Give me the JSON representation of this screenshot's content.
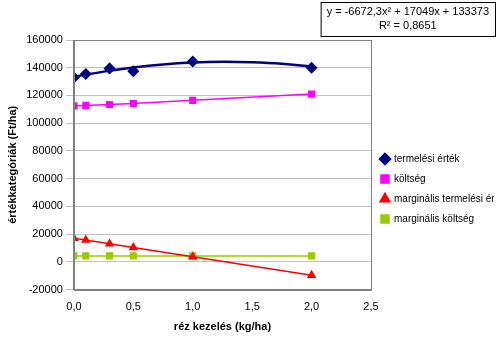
{
  "chart_data": {
    "type": "scatter",
    "x_label": "réz kezelés (kg/ha)",
    "y_label": "értékkategóriák (Ft/ha)",
    "x": [
      0,
      0.1,
      0.3,
      0.5,
      1.0,
      2.0
    ],
    "series": [
      {
        "name": "termelési érték",
        "color": "#000080",
        "marker": "diamond",
        "line_style": "none",
        "values": [
          133000,
          135500,
          139500,
          137500,
          144500,
          140000
        ],
        "trend": {
          "x": [
            0,
            0.25,
            0.5,
            0.75,
            1.0,
            1.25,
            1.5,
            1.75,
            2.0
          ],
          "values": [
            133400,
            137200,
            140200,
            142400,
            143750,
            144300,
            143900,
            142800,
            140800
          ],
          "line_style": "solid"
        }
      },
      {
        "name": "költség",
        "color": "#ff00ff",
        "marker": "square",
        "line_style": "solid",
        "values": [
          112500,
          112800,
          113500,
          114200,
          116500,
          121000
        ]
      },
      {
        "name": "marginális termelési érték",
        "color": "#ff0000",
        "marker": "triangle",
        "line_style": "solid",
        "values": [
          17000,
          15700,
          13000,
          10400,
          3700,
          -9600
        ]
      },
      {
        "name": "marginális költség",
        "color": "#99cc00",
        "marker": "square",
        "line_style": "solid",
        "values": [
          4300,
          4300,
          4300,
          4300,
          4300,
          4300
        ]
      }
    ],
    "xlim": [
      0,
      2.5
    ],
    "xticks": [
      {
        "value": 0,
        "label": "0,0"
      },
      {
        "value": 0.5,
        "label": "0,5"
      },
      {
        "value": 1.0,
        "label": "1,0"
      },
      {
        "value": 1.5,
        "label": "1,5"
      },
      {
        "value": 2.0,
        "label": "2,0"
      },
      {
        "value": 2.5,
        "label": "2,5"
      }
    ],
    "ylim": [
      -20000,
      160000
    ],
    "yticks": [
      -20000,
      0,
      20000,
      40000,
      60000,
      80000,
      100000,
      120000,
      140000,
      160000
    ],
    "grid": "y",
    "legend": "right",
    "annotations": [
      "y = -6672,3x² + 17049x + 133373",
      "R² = 0,8651"
    ]
  }
}
